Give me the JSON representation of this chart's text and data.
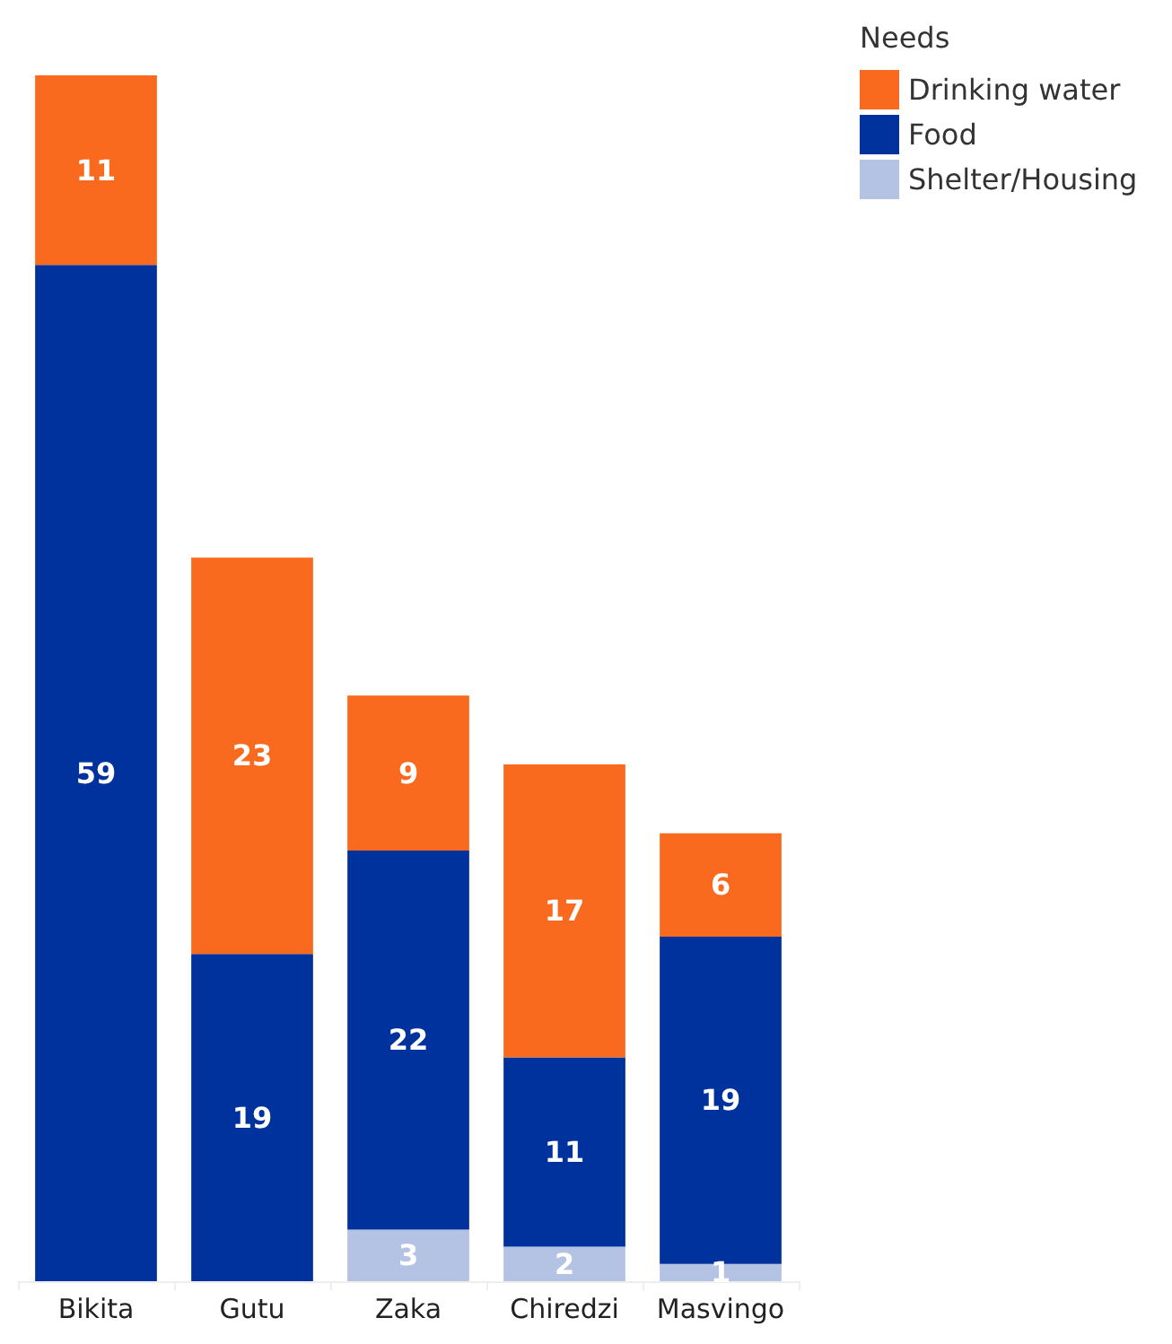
{
  "chart_data": {
    "type": "bar",
    "stacked": true,
    "data_labels": true,
    "legend": "top right",
    "legend_title": "Needs",
    "categories": [
      "Bikita",
      "Gutu",
      "Zaka",
      "Chiredzi",
      "Masvingo"
    ],
    "series": [
      {
        "name": "Shelter/Housing",
        "color": "#b4c3e3",
        "values": [
          null,
          null,
          3,
          2,
          1
        ]
      },
      {
        "name": "Food",
        "color": "#00329e",
        "values": [
          59,
          19,
          22,
          11,
          19
        ]
      },
      {
        "name": "Drinking water",
        "color": "#fa6a1e",
        "values": [
          11,
          23,
          9,
          17,
          6
        ]
      }
    ]
  }
}
